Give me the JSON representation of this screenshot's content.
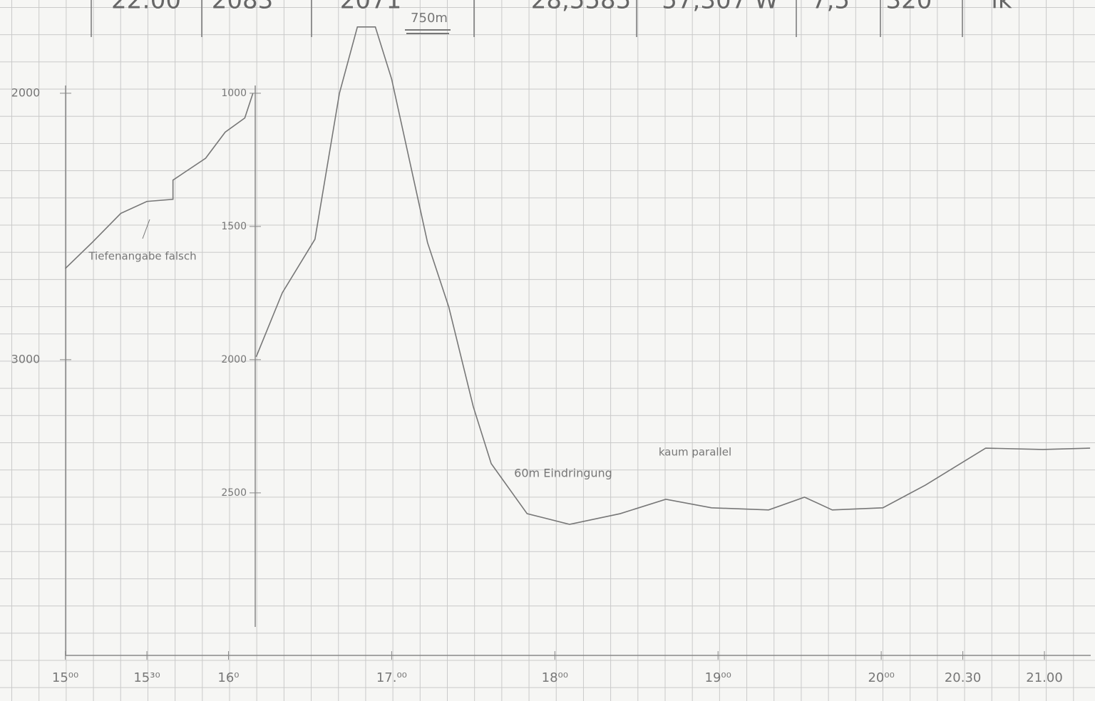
{
  "header_cells": [
    "22:00",
    "2083",
    "2071",
    "28,5585",
    "57,307 W",
    "7,5",
    "320",
    "lk"
  ],
  "chart_data": {
    "type": "line",
    "annotations": [
      "750m",
      "Tiefenangabe falsch",
      "60m Eindringung",
      "kaum parallel"
    ],
    "xlim": [
      14.6,
      21.31
    ],
    "xticks": [
      {
        "value": 15,
        "label": "15⁰⁰"
      },
      {
        "value": 15.5,
        "label": "15³⁰"
      },
      {
        "value": 16,
        "label": "16⁰"
      },
      {
        "value": 17,
        "label": "17.⁰⁰"
      },
      {
        "value": 18,
        "label": "18⁰⁰"
      },
      {
        "value": 19,
        "label": "19⁰⁰"
      },
      {
        "value": 20,
        "label": "20⁰⁰"
      },
      {
        "value": 20.5,
        "label": "20.30"
      },
      {
        "value": 21,
        "label": "21.00"
      }
    ],
    "ylim": [
      3110,
      650
    ],
    "yticks": [
      1000,
      1500,
      2000,
      2500
    ],
    "y2lim": [
      4110,
      1650
    ],
    "y2ticks": [
      2000,
      3000
    ],
    "series": [
      {
        "color": "#777777",
        "axis": "y2",
        "x": [
          15.0,
          15.17,
          15.34,
          15.5,
          15.66,
          15.66,
          15.86,
          15.98,
          16.1,
          16.15
        ],
        "values": [
          2658,
          2557,
          2451,
          2406,
          2398,
          2326,
          2244,
          2146,
          2093,
          2000
        ]
      },
      {
        "color": "#777777",
        "x": [
          16.17,
          16.33,
          16.53,
          16.68,
          16.79,
          16.9,
          17.0,
          17.22,
          17.35,
          17.5,
          17.61,
          17.83,
          18.09,
          18.4,
          18.68,
          18.96,
          19.31,
          19.53,
          19.7,
          20.01,
          20.27,
          20.64,
          20.99,
          21.28
        ],
        "values": [
          1989,
          1749,
          1548,
          1000,
          751,
          751,
          947,
          1561,
          1802,
          2176,
          2390,
          2578,
          2618,
          2578,
          2524,
          2556,
          2564,
          2516,
          2564,
          2556,
          2471,
          2332,
          2337,
          2332
        ]
      }
    ]
  }
}
